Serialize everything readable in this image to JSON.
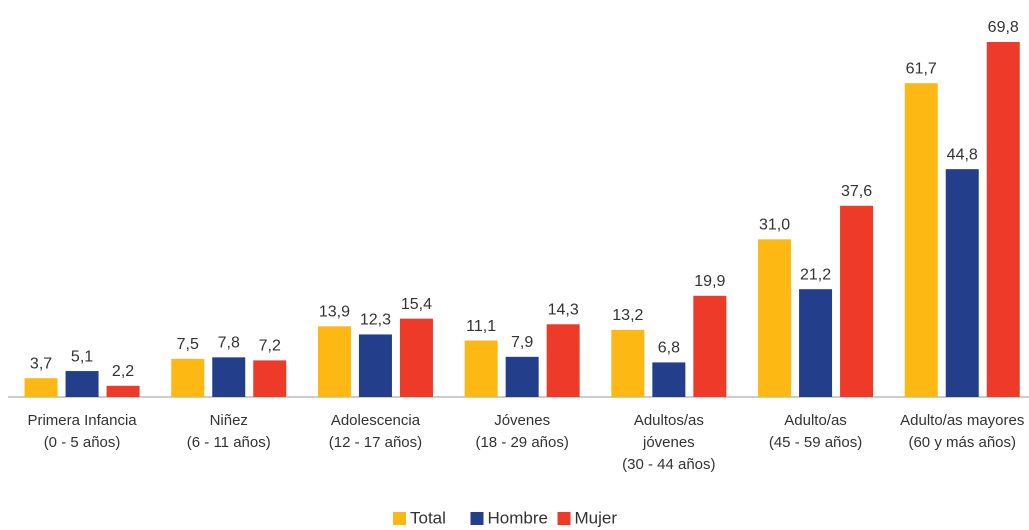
{
  "chart_data": {
    "type": "bar",
    "categories": [
      [
        "Primera Infancia",
        "(0 - 5 años)"
      ],
      [
        "Niñez",
        "(6 - 11 años)"
      ],
      [
        "Adolescencia",
        "(12 - 17 años)"
      ],
      [
        "Jóvenes",
        "(18 - 29 años)"
      ],
      [
        "Adultos/as",
        "jóvenes",
        "(30 - 44 años)"
      ],
      [
        "Adulto/as",
        "(45 - 59 años)"
      ],
      [
        "Adulto/as mayores",
        "(60 y más años)"
      ]
    ],
    "series": [
      {
        "name": "Total",
        "color": "#fdb813",
        "values": [
          3.7,
          7.5,
          13.9,
          11.1,
          13.2,
          31.0,
          61.7
        ],
        "value_labels": [
          "3,7",
          "7,5",
          "13,9",
          "11,1",
          "13,2",
          "31,0",
          "61,7"
        ]
      },
      {
        "name": "Hombre",
        "color": "#233e8b",
        "values": [
          5.1,
          7.8,
          12.3,
          7.9,
          6.8,
          21.2,
          44.8
        ],
        "value_labels": [
          "5,1",
          "7,8",
          "12,3",
          "7,9",
          "6,8",
          "21,2",
          "44,8"
        ]
      },
      {
        "name": "Mujer",
        "color": "#ee3a29",
        "values": [
          2.2,
          7.2,
          15.4,
          14.3,
          19.9,
          37.6,
          69.8
        ],
        "value_labels": [
          "2,2",
          "7,2",
          "15,4",
          "14,3",
          "19,9",
          "37,6",
          "69,8"
        ]
      }
    ],
    "ylim": [
      0,
      70
    ],
    "legend": "bottom"
  }
}
